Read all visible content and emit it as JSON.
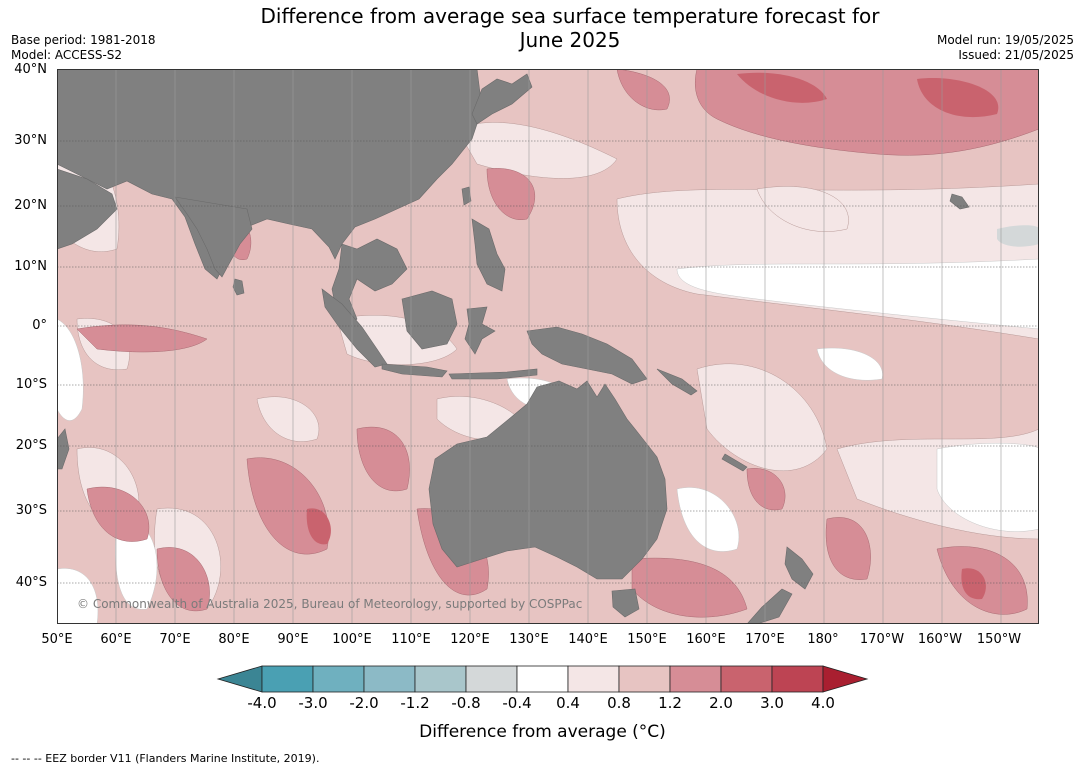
{
  "title_line1": "Difference from average sea surface temperature forecast for",
  "title_line2": "June 2025",
  "base_period": "Base period: 1981-2018",
  "model": "Model: ACCESS-S2",
  "model_run": "Model run: 19/05/2025",
  "issued": "Issued: 21/05/2025",
  "lat_labels": [
    "40°N",
    "30°N",
    "20°N",
    "10°N",
    "0°",
    "10°S",
    "20°S",
    "30°S",
    "40°S"
  ],
  "lon_labels": [
    "50°E",
    "60°E",
    "70°E",
    "80°E",
    "90°E",
    "100°E",
    "110°E",
    "120°E",
    "130°E",
    "140°E",
    "150°E",
    "160°E",
    "170°E",
    "180°",
    "170°W",
    "160°W",
    "150°W"
  ],
  "copyright": "© Commonwealth of Australia 2025, Bureau of Meteorology, supported by COSPPac",
  "colorbar": {
    "title": "Difference from average (°C)",
    "ticks": [
      "-4.0",
      "-3.0",
      "-2.0",
      "-1.2",
      "-0.8",
      "-0.4",
      "0.4",
      "0.8",
      "1.2",
      "2.0",
      "3.0",
      "4.0"
    ],
    "colors": [
      "#3b8594",
      "#4aa0b3",
      "#6fb0bf",
      "#8cbac6",
      "#a9c6cb",
      "#d4d8d9",
      "#ffffff",
      "#f4e6e6",
      "#e7c4c2",
      "#d68d96",
      "#c9636e",
      "#bd4453",
      "#a91f30"
    ]
  },
  "footnote": "--  --  -- EEZ border V11 (Flanders Marine Institute, 2019).",
  "colors": {
    "land": "#808080",
    "anom_0": "#ffffff",
    "anom_04_08": "#f4e6e6",
    "anom_08_12": "#e7c4c2",
    "anom_12_20": "#d68d96",
    "anom_20_30": "#c9636e",
    "anom_neg": "#d4d8d9"
  }
}
